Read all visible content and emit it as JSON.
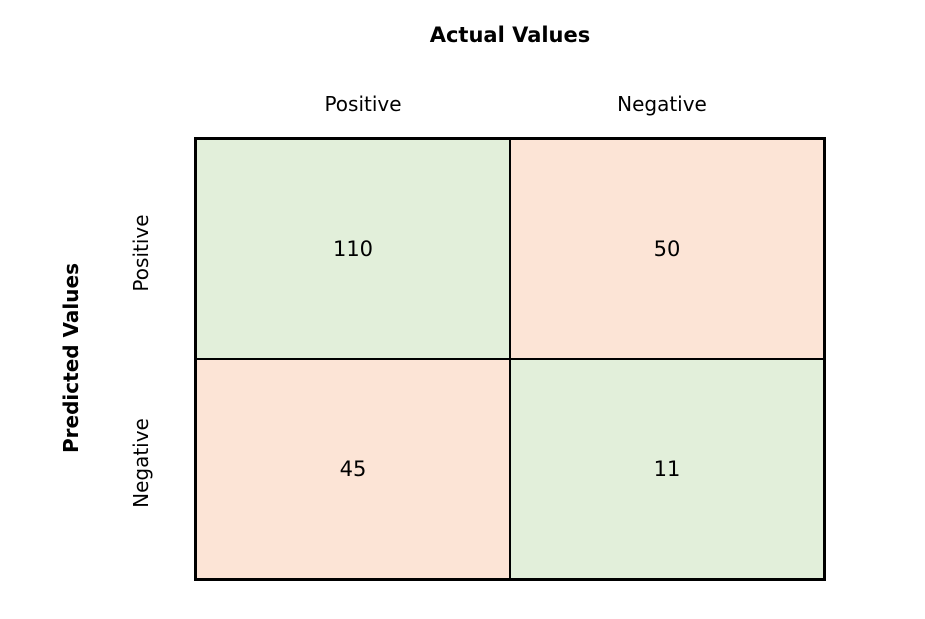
{
  "title": "Actual Values",
  "ylabel": "Predicted Values",
  "columns": [
    "Positive",
    "Negative"
  ],
  "rows": [
    "Positive",
    "Negative"
  ],
  "cells": {
    "tp": "110",
    "fp": "50",
    "fn": "45",
    "tn": "11"
  },
  "colors": {
    "correct": "#e2efda",
    "incorrect": "#fce4d6"
  }
}
